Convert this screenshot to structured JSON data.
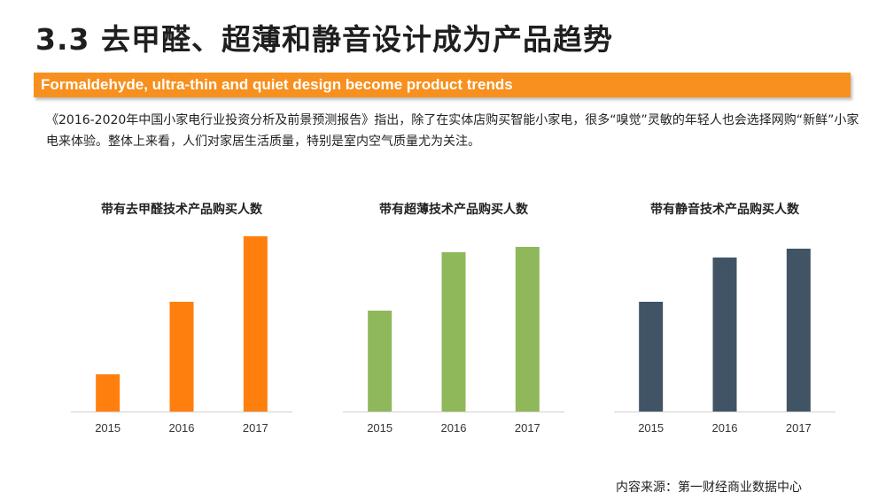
{
  "title": "3.3 去甲醛、超薄和静音设计成为产品趋势",
  "banner": "Formaldehyde, ultra-thin and quiet design become product trends",
  "intro": "《2016-2020年中国小家电行业投资分析及前景预测报告》指出，除了在实体店购买智能小家电，很多“嗅觉”灵敏的年轻人也会选择网购“新鲜”小家电来体验。整体上来看，人们对家居生活质量，特别是室内空气质量尤为关注。",
  "source": "内容来源：第一财经商业数据中心",
  "chart_data": [
    {
      "type": "bar",
      "title": "带有去甲醛技术产品购买人数",
      "categories": [
        "2015",
        "2016",
        "2017"
      ],
      "values": [
        21,
        62,
        99
      ],
      "ylim": [
        0,
        100
      ],
      "color": "#ff7f0e",
      "grid": false,
      "legend": "none"
    },
    {
      "type": "bar",
      "title": "带有超薄技术产品购买人数",
      "categories": [
        "2015",
        "2016",
        "2017"
      ],
      "values": [
        57,
        90,
        93
      ],
      "ylim": [
        0,
        100
      ],
      "color": "#8fb85b",
      "grid": false,
      "legend": "none"
    },
    {
      "type": "bar",
      "title": "带有静音技术产品购买人数",
      "categories": [
        "2015",
        "2016",
        "2017"
      ],
      "values": [
        62,
        87,
        92
      ],
      "ylim": [
        0,
        100
      ],
      "color": "#415466",
      "grid": false,
      "legend": "none"
    }
  ]
}
